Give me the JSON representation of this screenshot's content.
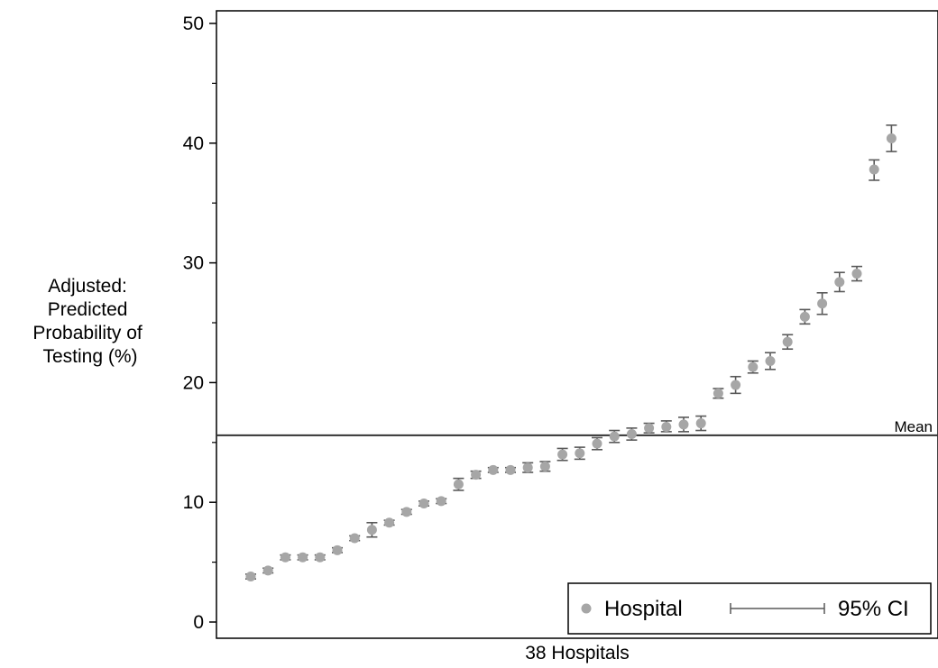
{
  "chart_data": {
    "type": "scatter",
    "title": "",
    "xlabel": "38 Hospitals",
    "ylabel_lines": [
      "Adjusted:",
      "Predicted",
      "Probability of",
      "Testing (%)"
    ],
    "ylim": [
      0,
      50
    ],
    "yticks": [
      0,
      10,
      20,
      30,
      40,
      50
    ],
    "grid": false,
    "mean": {
      "label": "Mean",
      "value": 15.6
    },
    "legend": {
      "position": "bottom-right",
      "entries": [
        {
          "label": "Hospital",
          "symbol": "point"
        },
        {
          "label": "95% CI",
          "symbol": "capped-line"
        }
      ]
    },
    "colors": {
      "point": "#a6a6a6",
      "ci": "#595959",
      "axis": "#000000",
      "mean_line": "#333333"
    },
    "series": [
      {
        "name": "Hospital",
        "x": [
          1,
          2,
          3,
          4,
          5,
          6,
          7,
          8,
          9,
          10,
          11,
          12,
          13,
          14,
          15,
          16,
          17,
          18,
          19,
          20,
          21,
          22,
          23,
          24,
          25,
          26,
          27,
          28,
          29,
          30,
          31,
          32,
          33,
          34,
          35,
          36,
          37,
          38
        ],
        "y": [
          3.8,
          4.3,
          5.4,
          5.4,
          5.4,
          6.0,
          7.0,
          7.7,
          8.3,
          9.2,
          9.9,
          10.1,
          11.5,
          12.3,
          12.7,
          12.7,
          12.9,
          13.0,
          14.0,
          14.1,
          14.9,
          15.5,
          15.7,
          16.2,
          16.3,
          16.5,
          16.6,
          19.1,
          19.8,
          21.3,
          21.8,
          23.4,
          25.5,
          26.6,
          28.4,
          29.1,
          37.8,
          40.4
        ],
        "lower": [
          3.6,
          4.1,
          5.2,
          5.2,
          5.2,
          5.8,
          6.8,
          7.1,
          8.1,
          9.0,
          9.7,
          9.9,
          11.0,
          12.0,
          12.5,
          12.5,
          12.5,
          12.6,
          13.5,
          13.6,
          14.4,
          15.0,
          15.2,
          15.8,
          15.9,
          15.9,
          16.0,
          18.7,
          19.1,
          20.8,
          21.1,
          22.8,
          24.9,
          25.7,
          27.6,
          28.5,
          36.9,
          39.3
        ],
        "upper": [
          4.0,
          4.5,
          5.6,
          5.6,
          5.6,
          6.2,
          7.2,
          8.3,
          8.5,
          9.4,
          10.1,
          10.3,
          12.0,
          12.6,
          12.9,
          12.9,
          13.3,
          13.4,
          14.5,
          14.6,
          15.4,
          16.0,
          16.2,
          16.6,
          16.8,
          17.1,
          17.2,
          19.5,
          20.5,
          21.8,
          22.5,
          24.0,
          26.1,
          27.5,
          29.2,
          29.7,
          38.6,
          41.5
        ]
      }
    ]
  }
}
